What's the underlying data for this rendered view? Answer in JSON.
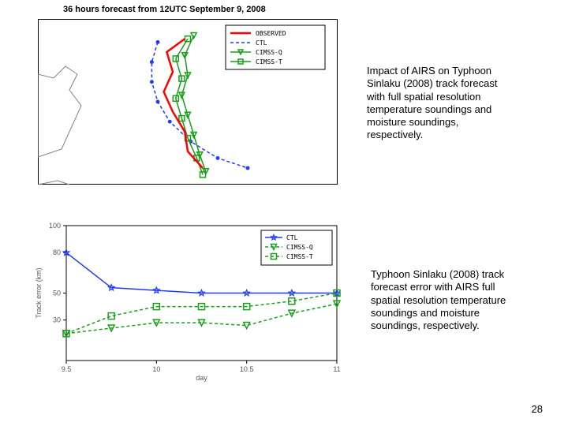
{
  "page_number": "28",
  "top_chart": {
    "type": "line-map",
    "title": "36 hours forecast from 12UTC September 9, 2008",
    "title_fontsize": 11,
    "background_color": "#ffffff",
    "border_color": "#000000",
    "coast_color": "#808080",
    "legend": {
      "box_color": "#000000",
      "items": [
        {
          "label": "OBSERVED",
          "color": "#ff0000",
          "marker": "none",
          "dash": "none",
          "line_width": 2.5
        },
        {
          "label": "CTL",
          "color": "#1e3aff",
          "marker": "none",
          "dash": "4,3",
          "line_width": 1.5
        },
        {
          "label": "CIMSS-Q",
          "color": "#18a018",
          "marker": "triangle-down",
          "dash": "none",
          "line_width": 1.5
        },
        {
          "label": "CIMSS-T",
          "color": "#18a018",
          "marker": "square",
          "dash": "none",
          "line_width": 1.5
        }
      ]
    },
    "tracks": {
      "observed": {
        "color": "#ff0000",
        "line_width": 2.5,
        "dash": "none",
        "points": [
          [
            0.49,
            0.12
          ],
          [
            0.43,
            0.2
          ],
          [
            0.45,
            0.32
          ],
          [
            0.42,
            0.44
          ],
          [
            0.45,
            0.56
          ],
          [
            0.49,
            0.68
          ],
          [
            0.5,
            0.8
          ],
          [
            0.55,
            0.9
          ]
        ]
      },
      "ctl": {
        "color": "#1e3aff",
        "line_width": 1.5,
        "dash": "4,3",
        "marker": "dot",
        "points": [
          [
            0.4,
            0.14
          ],
          [
            0.38,
            0.26
          ],
          [
            0.38,
            0.38
          ],
          [
            0.4,
            0.5
          ],
          [
            0.44,
            0.62
          ],
          [
            0.51,
            0.74
          ],
          [
            0.6,
            0.84
          ],
          [
            0.7,
            0.9
          ]
        ]
      },
      "cimss_q": {
        "color": "#18a018",
        "line_width": 1.5,
        "dash": "none",
        "marker": "triangle-down",
        "points": [
          [
            0.52,
            0.1
          ],
          [
            0.49,
            0.22
          ],
          [
            0.5,
            0.34
          ],
          [
            0.48,
            0.46
          ],
          [
            0.5,
            0.58
          ],
          [
            0.52,
            0.7
          ],
          [
            0.54,
            0.82
          ],
          [
            0.56,
            0.92
          ]
        ]
      },
      "cimss_t": {
        "color": "#18a018",
        "line_width": 1.5,
        "dash": "none",
        "marker": "square",
        "points": [
          [
            0.5,
            0.12
          ],
          [
            0.46,
            0.24
          ],
          [
            0.48,
            0.36
          ],
          [
            0.46,
            0.48
          ],
          [
            0.48,
            0.6
          ],
          [
            0.5,
            0.72
          ],
          [
            0.53,
            0.84
          ],
          [
            0.55,
            0.94
          ]
        ]
      }
    }
  },
  "bottom_chart": {
    "type": "line",
    "xlabel": "day",
    "ylabel": "Track error (km)",
    "label_fontsize": 9,
    "background_color": "#ffffff",
    "border_color": "#000000",
    "grid": false,
    "xlim": [
      9.5,
      11
    ],
    "xticks": [
      9.5,
      10,
      10.5,
      11
    ],
    "ylim": [
      0,
      100
    ],
    "yticks": [
      30,
      50,
      80,
      100
    ],
    "legend": {
      "items": [
        {
          "label": "CTL",
          "color": "#1e3aff",
          "marker": "star",
          "dash": "none"
        },
        {
          "label": "CIMSS-Q",
          "color": "#18a018",
          "marker": "triangle-down",
          "dash": "4,3"
        },
        {
          "label": "CIMSS-T",
          "color": "#18a018",
          "marker": "square",
          "dash": "4,3"
        }
      ]
    },
    "series": {
      "ctl": {
        "x": [
          9.5,
          9.75,
          10,
          10.25,
          10.5,
          10.75,
          11
        ],
        "y": [
          80,
          54,
          52,
          50,
          50,
          50,
          50
        ],
        "color": "#1e3aff",
        "marker": "star",
        "dash": "none",
        "line_width": 1.5
      },
      "cimss_q": {
        "x": [
          9.5,
          9.75,
          10,
          10.25,
          10.5,
          10.75,
          11
        ],
        "y": [
          20,
          24,
          28,
          28,
          26,
          35,
          42
        ],
        "color": "#18a018",
        "marker": "triangle-down",
        "dash": "4,3",
        "line_width": 1.5
      },
      "cimss_t": {
        "x": [
          9.5,
          9.75,
          10,
          10.25,
          10.5,
          10.75,
          11
        ],
        "y": [
          20,
          33,
          40,
          40,
          40,
          44,
          50
        ],
        "color": "#18a018",
        "marker": "square",
        "dash": "4,3",
        "line_width": 1.5
      }
    }
  },
  "annotations": {
    "top": "Impact of AIRS on Typhoon Sinlaku (2008) track forecast with full spatial resolution temperature soundings and moisture soundings, respectively.",
    "bottom": "Typhoon Sinlaku (2008) track forecast error with AIRS full spatial resolution temperature soundings and moisture soundings, respectively."
  },
  "colors": {
    "text": "#000000",
    "background": "#ffffff"
  }
}
